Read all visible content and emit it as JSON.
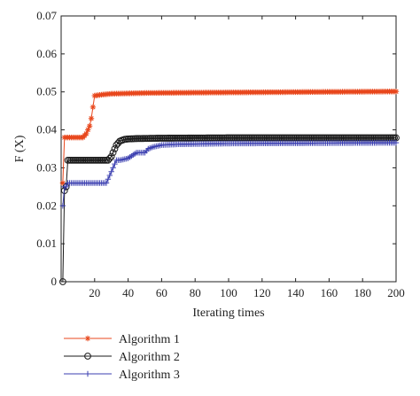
{
  "chart_data": {
    "type": "line",
    "title": "",
    "xlabel": "Iterating times",
    "ylabel": "F (X)",
    "xlim": [
      0,
      200
    ],
    "ylim": [
      0,
      0.07
    ],
    "xticks": [
      20,
      40,
      60,
      80,
      100,
      120,
      140,
      160,
      180,
      200
    ],
    "yticks": [
      0,
      0.01,
      0.02,
      0.03,
      0.04,
      0.05,
      0.06,
      0.07
    ],
    "xtick_labels": [
      "20",
      "40",
      "60",
      "80",
      "100",
      "120",
      "140",
      "160",
      "180",
      "200"
    ],
    "ytick_labels": [
      "0",
      "0.01",
      "0.02",
      "0.03",
      "0.04",
      "0.05",
      "0.06",
      "0.07"
    ],
    "grid": false,
    "legend_position": "below",
    "series": [
      {
        "name": "Algorithm 1",
        "color": "#e8471c",
        "marker": "asterisk",
        "x": [
          1,
          2,
          3,
          5,
          10,
          13,
          14,
          15,
          16,
          17,
          18,
          19,
          20,
          25,
          30,
          40,
          50,
          80,
          120,
          160,
          200
        ],
        "y": [
          0.026,
          0.038,
          0.038,
          0.038,
          0.038,
          0.038,
          0.0385,
          0.039,
          0.04,
          0.041,
          0.043,
          0.046,
          0.049,
          0.0493,
          0.0495,
          0.0496,
          0.0497,
          0.0498,
          0.0499,
          0.05,
          0.0501
        ]
      },
      {
        "name": "Algorithm 2",
        "color": "#1a1a1a",
        "marker": "circle",
        "x": [
          1,
          2,
          3,
          4,
          5,
          10,
          20,
          28,
          30,
          31,
          32,
          33,
          34,
          35,
          36,
          38,
          40,
          45,
          60,
          100,
          150,
          200
        ],
        "y": [
          0,
          0.024,
          0.025,
          0.032,
          0.032,
          0.032,
          0.032,
          0.032,
          0.033,
          0.034,
          0.035,
          0.036,
          0.0365,
          0.037,
          0.0372,
          0.0375,
          0.0376,
          0.0377,
          0.0378,
          0.0379,
          0.0379,
          0.0379
        ]
      },
      {
        "name": "Algorithm 3",
        "color": "#3b3fb0",
        "marker": "plus",
        "x": [
          1,
          2,
          3,
          4,
          5,
          10,
          20,
          27,
          28,
          30,
          32,
          33,
          35,
          40,
          45,
          50,
          52,
          55,
          60,
          70,
          100,
          150,
          200
        ],
        "y": [
          0.02,
          0.025,
          0.025,
          0.026,
          0.026,
          0.026,
          0.026,
          0.026,
          0.027,
          0.029,
          0.031,
          0.032,
          0.032,
          0.0325,
          0.034,
          0.034,
          0.035,
          0.0355,
          0.036,
          0.0362,
          0.0364,
          0.0365,
          0.0366
        ]
      }
    ]
  }
}
